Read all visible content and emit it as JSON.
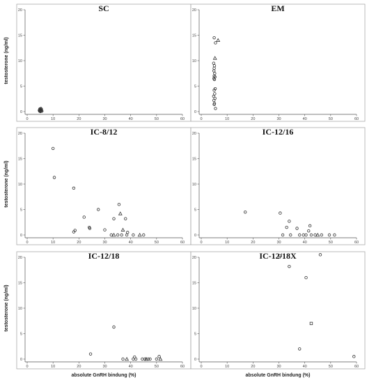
{
  "chart_data": [
    {
      "type": "scatter",
      "title": "SC",
      "ylabel": "testosterone (ng/ml)",
      "xlabel": "",
      "xlim": [
        0,
        60
      ],
      "ylim": [
        0,
        20
      ],
      "xticks": [
        0,
        10,
        20,
        30,
        40,
        50,
        60
      ],
      "yticks": [
        0,
        5,
        10,
        15,
        20
      ],
      "grid": false,
      "points": [
        {
          "x": 4.8,
          "y": 0.1,
          "m": "circle"
        },
        {
          "x": 5.0,
          "y": 0.2,
          "m": "circle"
        },
        {
          "x": 5.2,
          "y": 0.05,
          "m": "circle"
        },
        {
          "x": 5.4,
          "y": 0.3,
          "m": "circle"
        },
        {
          "x": 5.0,
          "y": 0.4,
          "m": "circle"
        },
        {
          "x": 5.6,
          "y": 0.15,
          "m": "circle"
        },
        {
          "x": 4.9,
          "y": 0.5,
          "m": "circle"
        },
        {
          "x": 5.3,
          "y": 0.6,
          "m": "circle"
        },
        {
          "x": 5.7,
          "y": 0.1,
          "m": "circle"
        },
        {
          "x": 5.1,
          "y": 0.0,
          "m": "circle"
        },
        {
          "x": 5.5,
          "y": 0.45,
          "m": "circle"
        },
        {
          "x": 4.7,
          "y": 0.25,
          "m": "circle"
        }
      ]
    },
    {
      "type": "scatter",
      "title": "EM",
      "ylabel": "",
      "xlabel": "",
      "xlim": [
        0,
        60
      ],
      "ylim": [
        0,
        20
      ],
      "xticks": [
        0,
        10,
        20,
        30,
        40,
        50,
        60
      ],
      "yticks": [
        0,
        5,
        10,
        15,
        20
      ],
      "grid": false,
      "points": [
        {
          "x": 5.0,
          "y": 14.5,
          "m": "circle"
        },
        {
          "x": 6.5,
          "y": 14.0,
          "m": "triangle"
        },
        {
          "x": 5.5,
          "y": 13.5,
          "m": "circle"
        },
        {
          "x": 5.3,
          "y": 10.5,
          "m": "triangle"
        },
        {
          "x": 4.8,
          "y": 9.5,
          "m": "circle"
        },
        {
          "x": 5.1,
          "y": 9.0,
          "m": "circle"
        },
        {
          "x": 5.0,
          "y": 8.5,
          "m": "circle"
        },
        {
          "x": 4.9,
          "y": 8.0,
          "m": "circle"
        },
        {
          "x": 5.2,
          "y": 7.5,
          "m": "circle"
        },
        {
          "x": 5.0,
          "y": 7.0,
          "m": "circle"
        },
        {
          "x": 5.3,
          "y": 6.8,
          "m": "circle"
        },
        {
          "x": 4.9,
          "y": 6.5,
          "m": "circle"
        },
        {
          "x": 5.1,
          "y": 6.3,
          "m": "circle"
        },
        {
          "x": 5.4,
          "y": 4.5,
          "m": "circle"
        },
        {
          "x": 5.0,
          "y": 4.2,
          "m": "circle"
        },
        {
          "x": 5.2,
          "y": 3.5,
          "m": "circle"
        },
        {
          "x": 4.8,
          "y": 3.0,
          "m": "circle"
        },
        {
          "x": 5.3,
          "y": 2.6,
          "m": "circle"
        },
        {
          "x": 4.9,
          "y": 2.2,
          "m": "circle"
        },
        {
          "x": 5.1,
          "y": 1.6,
          "m": "circle"
        },
        {
          "x": 5.0,
          "y": 1.4,
          "m": "circle"
        },
        {
          "x": 5.5,
          "y": 0.6,
          "m": "circle"
        }
      ]
    },
    {
      "type": "scatter",
      "title": "IC-8/12",
      "ylabel": "testosterone (ng/ml)",
      "xlabel": "",
      "xlim": [
        0,
        60
      ],
      "ylim": [
        0,
        20
      ],
      "xticks": [
        0,
        10,
        20,
        30,
        40,
        50,
        60
      ],
      "yticks": [
        0,
        5,
        10,
        15,
        20
      ],
      "grid": false,
      "points": [
        {
          "x": 10.0,
          "y": 17.0,
          "m": "circle"
        },
        {
          "x": 10.5,
          "y": 11.3,
          "m": "circle"
        },
        {
          "x": 18.0,
          "y": 9.2,
          "m": "circle"
        },
        {
          "x": 35.5,
          "y": 6.0,
          "m": "circle"
        },
        {
          "x": 27.5,
          "y": 5.0,
          "m": "circle"
        },
        {
          "x": 36.0,
          "y": 4.2,
          "m": "triangle"
        },
        {
          "x": 22.0,
          "y": 3.5,
          "m": "circle"
        },
        {
          "x": 33.5,
          "y": 3.2,
          "m": "circle"
        },
        {
          "x": 38.0,
          "y": 3.2,
          "m": "circle"
        },
        {
          "x": 24.0,
          "y": 1.5,
          "m": "circle"
        },
        {
          "x": 24.2,
          "y": 1.3,
          "m": "circle"
        },
        {
          "x": 30.0,
          "y": 1.0,
          "m": "circle"
        },
        {
          "x": 37.0,
          "y": 1.0,
          "m": "triangle"
        },
        {
          "x": 18.5,
          "y": 0.9,
          "m": "circle"
        },
        {
          "x": 18.0,
          "y": 0.6,
          "m": "circle"
        },
        {
          "x": 38.8,
          "y": 0.5,
          "m": "circle"
        },
        {
          "x": 32.5,
          "y": 0.0,
          "m": "circle"
        },
        {
          "x": 33.5,
          "y": 0.0,
          "m": "triangle"
        },
        {
          "x": 35.0,
          "y": 0.0,
          "m": "circle"
        },
        {
          "x": 36.5,
          "y": 0.0,
          "m": "circle"
        },
        {
          "x": 38.5,
          "y": 0.0,
          "m": "circle"
        },
        {
          "x": 41.0,
          "y": 0.0,
          "m": "circle"
        },
        {
          "x": 43.5,
          "y": 0.0,
          "m": "triangle"
        },
        {
          "x": 45.0,
          "y": 0.0,
          "m": "circle"
        }
      ]
    },
    {
      "type": "scatter",
      "title": "IC-12/16",
      "ylabel": "",
      "xlabel": "",
      "xlim": [
        0,
        60
      ],
      "ylim": [
        0,
        20
      ],
      "xticks": [
        0,
        10,
        20,
        30,
        40,
        50,
        60
      ],
      "yticks": [
        0,
        5,
        10,
        15,
        20
      ],
      "grid": false,
      "points": [
        {
          "x": 17.0,
          "y": 4.5,
          "m": "circle"
        },
        {
          "x": 30.5,
          "y": 4.3,
          "m": "circle"
        },
        {
          "x": 34.0,
          "y": 2.7,
          "m": "circle"
        },
        {
          "x": 42.0,
          "y": 1.8,
          "m": "circle"
        },
        {
          "x": 33.0,
          "y": 1.5,
          "m": "circle"
        },
        {
          "x": 37.0,
          "y": 1.3,
          "m": "circle"
        },
        {
          "x": 41.5,
          "y": 0.8,
          "m": "circle"
        },
        {
          "x": 31.5,
          "y": 0.0,
          "m": "circle"
        },
        {
          "x": 34.5,
          "y": 0.0,
          "m": "circle"
        },
        {
          "x": 38.0,
          "y": 0.0,
          "m": "circle"
        },
        {
          "x": 39.5,
          "y": 0.0,
          "m": "circle"
        },
        {
          "x": 40.5,
          "y": 0.0,
          "m": "circle"
        },
        {
          "x": 42.5,
          "y": 0.0,
          "m": "circle"
        },
        {
          "x": 44.0,
          "y": 0.0,
          "m": "circle"
        },
        {
          "x": 45.0,
          "y": 0.0,
          "m": "triangle"
        },
        {
          "x": 46.5,
          "y": 0.0,
          "m": "circle"
        },
        {
          "x": 49.5,
          "y": 0.0,
          "m": "circle"
        },
        {
          "x": 51.5,
          "y": 0.0,
          "m": "circle"
        }
      ]
    },
    {
      "type": "scatter",
      "title": "IC-12/18",
      "ylabel": "testosterone (ng/ml)",
      "xlabel": "absolute GnRH bindung (%)",
      "xlim": [
        0,
        60
      ],
      "ylim": [
        0,
        20
      ],
      "xticks": [
        0,
        10,
        20,
        30,
        40,
        50,
        60
      ],
      "yticks": [
        0,
        5,
        10,
        15,
        20
      ],
      "grid": false,
      "points": [
        {
          "x": 33.5,
          "y": 6.3,
          "m": "circle"
        },
        {
          "x": 24.5,
          "y": 1.0,
          "m": "circle"
        },
        {
          "x": 41.5,
          "y": 0.4,
          "m": "circle"
        },
        {
          "x": 51.0,
          "y": 0.5,
          "m": "circle"
        },
        {
          "x": 37.0,
          "y": 0.0,
          "m": "circle"
        },
        {
          "x": 38.5,
          "y": 0.0,
          "m": "triangle"
        },
        {
          "x": 41.0,
          "y": 0.0,
          "m": "circle"
        },
        {
          "x": 42.0,
          "y": 0.0,
          "m": "circle"
        },
        {
          "x": 44.5,
          "y": 0.0,
          "m": "circle"
        },
        {
          "x": 45.5,
          "y": 0.0,
          "m": "circle"
        },
        {
          "x": 46.0,
          "y": 0.0,
          "m": "triangle"
        },
        {
          "x": 46.8,
          "y": 0.0,
          "m": "circle"
        },
        {
          "x": 47.5,
          "y": 0.0,
          "m": "circle"
        },
        {
          "x": 50.0,
          "y": 0.0,
          "m": "circle"
        },
        {
          "x": 51.5,
          "y": 0.0,
          "m": "triangle"
        }
      ]
    },
    {
      "type": "scatter",
      "title": "IC-12/18X",
      "ylabel": "",
      "xlabel": "absolute GnRH bindung (%)",
      "xlim": [
        0,
        60
      ],
      "ylim": [
        0,
        20
      ],
      "xticks": [
        0,
        10,
        20,
        30,
        40,
        50,
        60
      ],
      "yticks": [
        0,
        5,
        10,
        15,
        20
      ],
      "grid": false,
      "points": [
        {
          "x": 30.5,
          "y": 20.3,
          "m": "square"
        },
        {
          "x": 46.0,
          "y": 20.5,
          "m": "circle"
        },
        {
          "x": 34.0,
          "y": 18.2,
          "m": "circle"
        },
        {
          "x": 40.5,
          "y": 16.0,
          "m": "circle"
        },
        {
          "x": 42.5,
          "y": 7.0,
          "m": "square"
        },
        {
          "x": 38.0,
          "y": 2.0,
          "m": "circle"
        },
        {
          "x": 59.0,
          "y": 0.5,
          "m": "circle"
        }
      ]
    }
  ]
}
